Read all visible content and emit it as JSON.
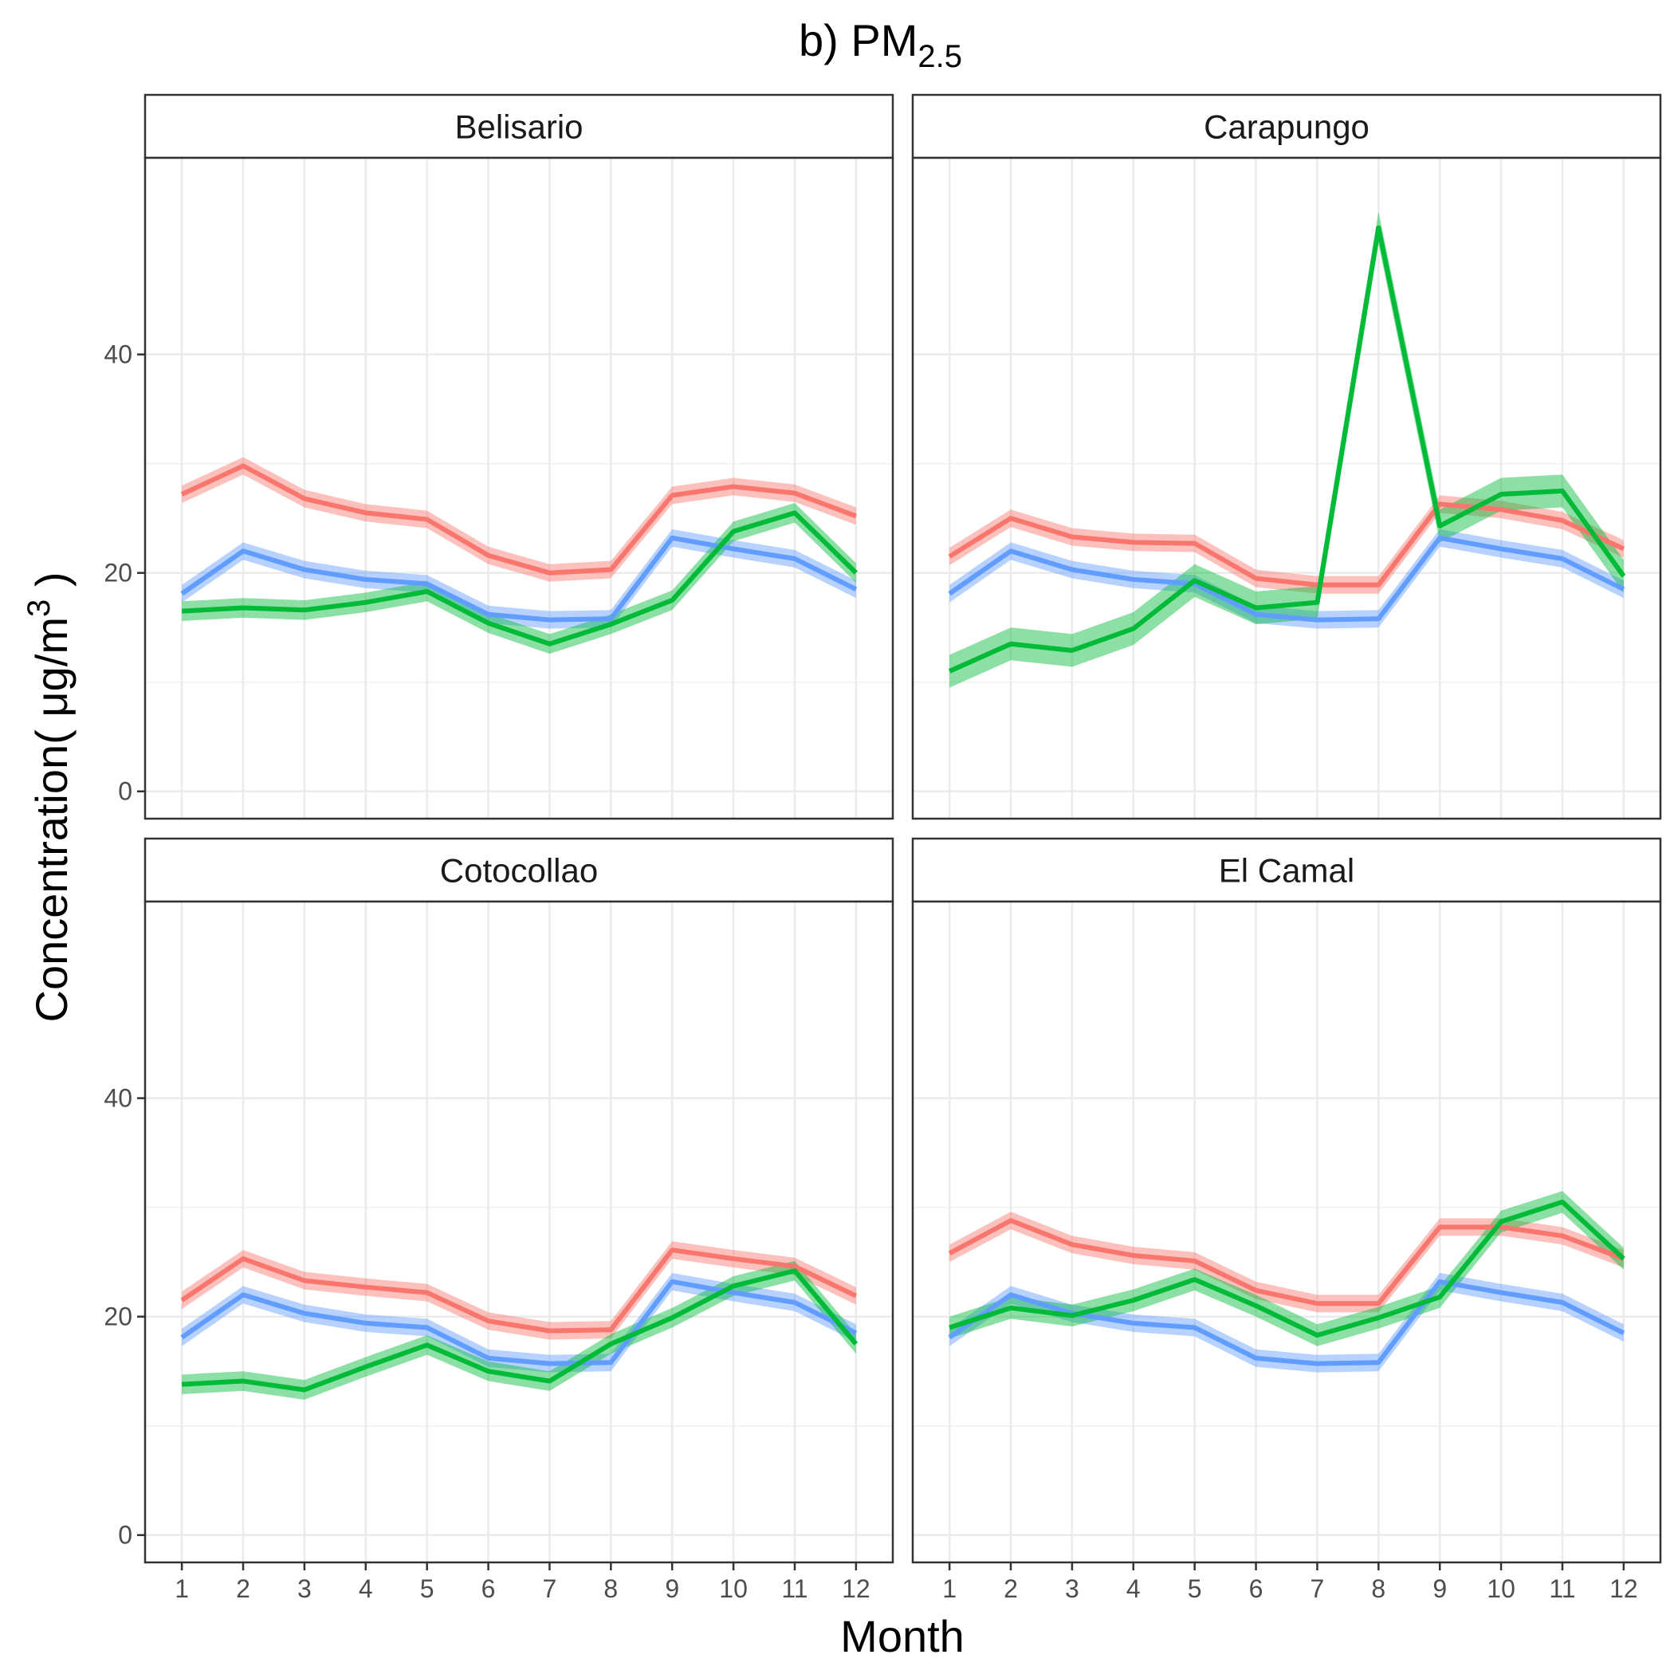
{
  "chart_data": {
    "type": "line",
    "title": "b) PM",
    "title_subscript": "2.5",
    "xlabel": "Month",
    "ylabel": {
      "prefix": "Concentration( ",
      "mu": "μ",
      "unit": "g/m",
      "sup": "3",
      "suffix": " )"
    },
    "x": [
      1,
      2,
      3,
      4,
      5,
      6,
      7,
      8,
      9,
      10,
      11,
      12
    ],
    "x_tick_labels": [
      "1",
      "2",
      "3",
      "4",
      "5",
      "6",
      "7",
      "8",
      "9",
      "10",
      "11",
      "12"
    ],
    "ylim": [
      -2.5,
      58
    ],
    "y_ticks": [
      0,
      20,
      40
    ],
    "y_tick_labels": [
      "0",
      "20",
      "40"
    ],
    "grid": true,
    "legend": "none",
    "series_colors": [
      "#F8766D",
      "#619CFF",
      "#00BA38"
    ],
    "panels": [
      {
        "name": "Belisario",
        "series": [
          {
            "color": "#F8766D",
            "values": [
              27.2,
              29.8,
              26.8,
              25.5,
              24.9,
              21.6,
              20.0,
              20.3,
              27.1,
              27.9,
              27.3,
              25.2
            ],
            "band": 0.8
          },
          {
            "color": "#619CFF",
            "values": [
              18.1,
              22.0,
              20.3,
              19.4,
              19.0,
              16.2,
              15.7,
              15.8,
              23.2,
              22.2,
              21.3,
              18.5
            ],
            "band": 0.8
          },
          {
            "color": "#00BA38",
            "values": [
              16.5,
              16.8,
              16.6,
              17.3,
              18.3,
              15.4,
              13.5,
              15.3,
              17.5,
              23.8,
              25.5,
              20.0
            ],
            "band": 0.9
          }
        ]
      },
      {
        "name": "Carapungo",
        "series": [
          {
            "color": "#F8766D",
            "values": [
              21.5,
              25.0,
              23.3,
              22.8,
              22.7,
              19.5,
              18.9,
              18.9,
              26.3,
              25.8,
              24.8,
              22.2
            ],
            "band": 0.8
          },
          {
            "color": "#619CFF",
            "values": [
              18.1,
              22.0,
              20.3,
              19.4,
              19.0,
              16.2,
              15.7,
              15.8,
              23.2,
              22.2,
              21.3,
              18.5
            ],
            "band": 0.8
          },
          {
            "color": "#00BA38",
            "values": [
              11.0,
              13.5,
              12.9,
              14.9,
              19.3,
              16.8,
              17.3,
              51.6,
              24.3,
              27.2,
              27.5,
              19.7
            ],
            "band": 1.5
          }
        ]
      },
      {
        "name": "Cotocollao",
        "series": [
          {
            "color": "#F8766D",
            "values": [
              21.5,
              25.3,
              23.3,
              22.7,
              22.2,
              19.6,
              18.7,
              18.8,
              26.1,
              25.3,
              24.6,
              21.9
            ],
            "band": 0.8
          },
          {
            "color": "#619CFF",
            "values": [
              18.1,
              22.0,
              20.3,
              19.4,
              19.0,
              16.2,
              15.7,
              15.8,
              23.2,
              22.2,
              21.3,
              18.5
            ],
            "band": 0.8
          },
          {
            "color": "#00BA38",
            "values": [
              13.8,
              14.1,
              13.3,
              15.4,
              17.4,
              15.0,
              14.1,
              17.5,
              19.9,
              22.8,
              24.2,
              17.5
            ],
            "band": 0.9
          }
        ]
      },
      {
        "name": "El Camal",
        "series": [
          {
            "color": "#F8766D",
            "values": [
              25.8,
              28.8,
              26.6,
              25.6,
              25.1,
              22.4,
              21.2,
              21.2,
              28.2,
              28.2,
              27.4,
              25.3
            ],
            "band": 0.8
          },
          {
            "color": "#619CFF",
            "values": [
              18.1,
              22.0,
              20.3,
              19.4,
              19.0,
              16.2,
              15.7,
              15.8,
              23.2,
              22.2,
              21.3,
              18.5
            ],
            "band": 0.8
          },
          {
            "color": "#00BA38",
            "values": [
              19.0,
              20.8,
              20.1,
              21.5,
              23.4,
              21.0,
              18.3,
              19.9,
              21.8,
              28.7,
              30.5,
              25.3
            ],
            "band": 1.0
          }
        ]
      }
    ]
  }
}
